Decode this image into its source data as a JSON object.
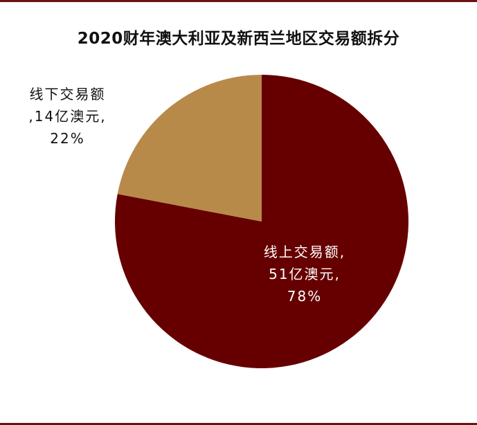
{
  "chart_data": {
    "type": "pie",
    "title": "2020财年澳大利亚及新西兰地区交易额拆分",
    "slices": [
      {
        "name": "线上交易额",
        "value": 51,
        "percent": 78,
        "label_lines": [
          "线上交易额,",
          "51亿澳元,",
          "78%"
        ],
        "color": "#660000"
      },
      {
        "name": "线下交易额",
        "value": 14,
        "percent": 22,
        "label_lines": [
          "线下交易额",
          ",14亿澳元,",
          "22%"
        ],
        "color": "#b88a4a"
      }
    ],
    "legend": "none",
    "start": "12 o'clock",
    "direction": "clockwise"
  }
}
